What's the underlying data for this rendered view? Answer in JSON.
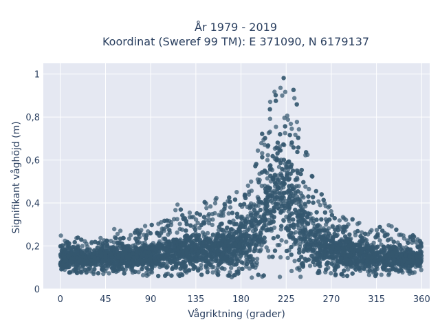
{
  "chart_data": {
    "type": "scatter",
    "title": [
      "År 1979 - 2019",
      "Koordinat (Sweref 99 TM): E 371090, N 6179137"
    ],
    "xlabel": "Vågriktning (grader)",
    "ylabel": "Signifikant våghöjd (m)",
    "xlim": [
      -17,
      368
    ],
    "ylim": [
      0,
      1.05
    ],
    "x_ticks": [
      0,
      45,
      90,
      135,
      180,
      225,
      270,
      315,
      360
    ],
    "x_tick_labels": [
      "0",
      "45",
      "90",
      "135",
      "180",
      "225",
      "270",
      "315",
      "360"
    ],
    "y_ticks": [
      0,
      0.2,
      0.4,
      0.6,
      0.8,
      1
    ],
    "y_tick_labels": [
      "0",
      "0,2",
      "0,4",
      "0,6",
      "0,8",
      "1"
    ],
    "grid": true,
    "legend": "none",
    "colors": {
      "marker": "#34576f",
      "plot_bg": "#e5e8f2",
      "grid": "#ffffff",
      "text": "#2a3f5f"
    },
    "series": [
      {
        "x": [
          0,
          5,
          10,
          15,
          20,
          25,
          30,
          35,
          40,
          45,
          50,
          55,
          60,
          65,
          70,
          75,
          80,
          85,
          90,
          95,
          100,
          105,
          110,
          115,
          120,
          125,
          130,
          135,
          140,
          145,
          150,
          155,
          160,
          165,
          170,
          175,
          180,
          185,
          190,
          195,
          200,
          205,
          210,
          215,
          220,
          225,
          230,
          235,
          240,
          245,
          250,
          255,
          260,
          265,
          270,
          275,
          280,
          285,
          290,
          295,
          300,
          305,
          310,
          315,
          320,
          325,
          330,
          335,
          340,
          345,
          350,
          355,
          360
        ],
        "y_min": [
          0.07,
          0.07,
          0.07,
          0.07,
          0.07,
          0.07,
          0.07,
          0.07,
          0.07,
          0.07,
          0.07,
          0.07,
          0.07,
          0.07,
          0.07,
          0.06,
          0.06,
          0.06,
          0.06,
          0.06,
          0.06,
          0.06,
          0.06,
          0.06,
          0.06,
          0.06,
          0.06,
          0.06,
          0.06,
          0.06,
          0.06,
          0.06,
          0.06,
          0.06,
          0.05,
          0.05,
          0.05,
          0.05,
          0.05,
          0.04,
          0.04,
          0.04,
          0.04,
          0.04,
          0.04,
          0.04,
          0.04,
          0.04,
          0.04,
          0.05,
          0.05,
          0.05,
          0.06,
          0.06,
          0.06,
          0.06,
          0.06,
          0.06,
          0.06,
          0.06,
          0.06,
          0.06,
          0.06,
          0.06,
          0.06,
          0.06,
          0.07,
          0.07,
          0.07,
          0.07,
          0.07,
          0.07,
          0.07
        ],
        "y_max": [
          0.29,
          0.22,
          0.22,
          0.24,
          0.24,
          0.22,
          0.22,
          0.22,
          0.24,
          0.22,
          0.27,
          0.3,
          0.27,
          0.25,
          0.27,
          0.28,
          0.29,
          0.3,
          0.3,
          0.3,
          0.32,
          0.32,
          0.33,
          0.41,
          0.38,
          0.36,
          0.36,
          0.39,
          0.42,
          0.41,
          0.42,
          0.44,
          0.4,
          0.44,
          0.45,
          0.46,
          0.46,
          0.5,
          0.56,
          0.62,
          0.71,
          0.8,
          0.92,
          1.01,
          1.01,
          1.0,
          0.97,
          0.9,
          0.78,
          0.66,
          0.54,
          0.48,
          0.45,
          0.41,
          0.38,
          0.34,
          0.33,
          0.35,
          0.33,
          0.32,
          0.3,
          0.3,
          0.28,
          0.28,
          0.3,
          0.3,
          0.3,
          0.28,
          0.28,
          0.26,
          0.25,
          0.25,
          0.22
        ],
        "y_typical": [
          0.14,
          0.14,
          0.14,
          0.14,
          0.14,
          0.14,
          0.14,
          0.15,
          0.15,
          0.15,
          0.15,
          0.15,
          0.15,
          0.15,
          0.15,
          0.15,
          0.16,
          0.16,
          0.16,
          0.16,
          0.16,
          0.17,
          0.17,
          0.17,
          0.17,
          0.17,
          0.18,
          0.18,
          0.18,
          0.18,
          0.19,
          0.19,
          0.19,
          0.19,
          0.2,
          0.2,
          0.21,
          0.22,
          0.24,
          0.28,
          0.32,
          0.38,
          0.44,
          0.48,
          0.48,
          0.46,
          0.42,
          0.36,
          0.3,
          0.26,
          0.23,
          0.21,
          0.2,
          0.19,
          0.18,
          0.18,
          0.17,
          0.17,
          0.17,
          0.16,
          0.16,
          0.16,
          0.16,
          0.15,
          0.15,
          0.15,
          0.15,
          0.15,
          0.15,
          0.14,
          0.14,
          0.14,
          0.14
        ]
      }
    ]
  }
}
